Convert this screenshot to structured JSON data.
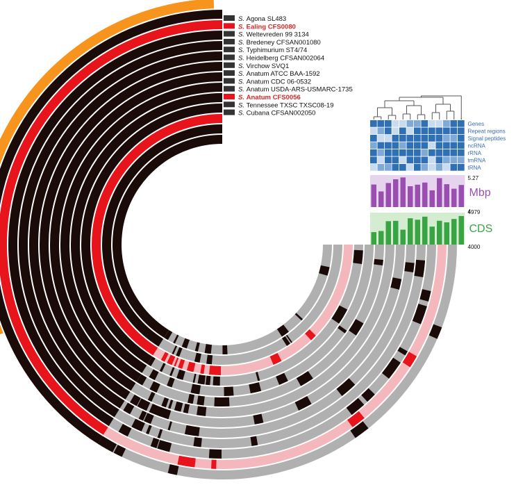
{
  "genomes": [
    {
      "species": "S.",
      "name": "Agona SL483",
      "highlight": false
    },
    {
      "species": "S.",
      "name": "Ealing CFS0080",
      "highlight": true
    },
    {
      "species": "S.",
      "name": "Weltevreden 99 3134",
      "highlight": false
    },
    {
      "species": "S.",
      "name": "Bredeney CFSAN001080",
      "highlight": false
    },
    {
      "species": "S.",
      "name": "Typhimurium ST4/74",
      "highlight": false
    },
    {
      "species": "S.",
      "name": "Heidelberg CFSAN002064",
      "highlight": false
    },
    {
      "species": "S.",
      "name": "Virchow SVQ1",
      "highlight": false
    },
    {
      "species": "S.",
      "name": "Anatum ATCC BAA-1592",
      "highlight": false
    },
    {
      "species": "S.",
      "name": "Anatum CDC 06-0532",
      "highlight": false
    },
    {
      "species": "S.",
      "name": "Anatum USDA-ARS-USMARC-1735",
      "highlight": false
    },
    {
      "species": "S.",
      "name": "Anatum CFS0056",
      "highlight": true
    },
    {
      "species": "S.",
      "name": "Tennessee TXSC TXSC08-19",
      "highlight": false
    },
    {
      "species": "S.",
      "name": "Cubana CFSAN002050",
      "highlight": false
    }
  ],
  "heatmap_rows": [
    "Genes",
    "Repeat regions",
    "Signal peptides",
    "ncRNA",
    "rRNA",
    "tmRNA",
    "tRNA"
  ],
  "mbp_panel": {
    "label": "Mbp",
    "max": "5.27",
    "min": "4"
  },
  "cds_panel": {
    "label": "CDS",
    "max": "4979",
    "min": "4000"
  },
  "colors": {
    "core": "#1a0a08",
    "absent": "#b0b0b0",
    "highlight_core": "#e8141c",
    "highlight_absent": "#f4b8bc",
    "outer_band": "#f7941d",
    "heatmap": "#2f6fb4",
    "mbp": "#9a4fb0",
    "mbp_bg": "#e6d4ee",
    "cds": "#3aa445",
    "cds_bg": "#d4ecd0"
  }
}
